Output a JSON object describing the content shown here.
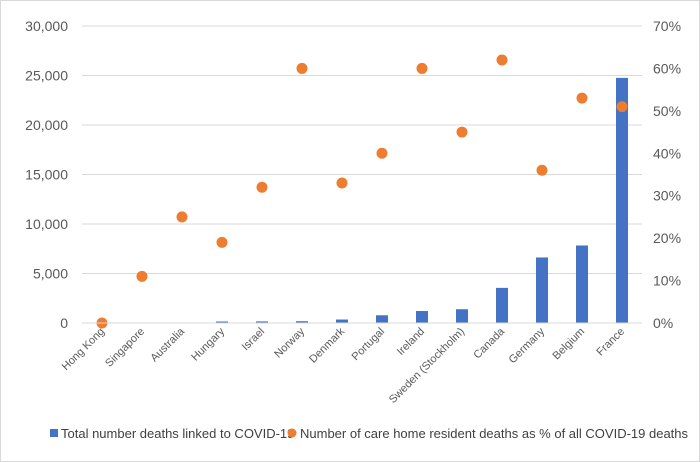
{
  "chart_data": {
    "type": "bar",
    "categories": [
      "Hong Kong",
      "Singapore",
      "Australia",
      "Hungary",
      "Israel",
      "Norway",
      "Denmark",
      "Portugal",
      "Ireland",
      "Sweden (Stockholm)",
      "Canada",
      "Germany",
      "Belgium",
      "France"
    ],
    "series": [
      {
        "name": "Total number deaths linked to COVID-19",
        "type": "bar",
        "axis": "left",
        "color": "#4472C4",
        "values": [
          0,
          0,
          50,
          150,
          160,
          180,
          350,
          780,
          1210,
          1390,
          3550,
          6620,
          7830,
          24760
        ]
      },
      {
        "name": "Number of care home resident deaths as % of all COVID-19 deaths",
        "type": "scatter",
        "axis": "right",
        "color": "#ED7D31",
        "values": [
          0,
          11,
          25,
          19,
          32,
          60,
          33,
          40,
          60,
          45,
          62,
          36,
          53,
          51
        ]
      }
    ],
    "y_left": {
      "ylim": [
        0,
        30000
      ],
      "ticks": [
        "0",
        "5,000",
        "10,000",
        "15,000",
        "20,000",
        "25,000",
        "30,000"
      ]
    },
    "y_right": {
      "ylim": [
        0,
        70
      ],
      "ticks": [
        "0%",
        "10%",
        "20%",
        "30%",
        "40%",
        "50%",
        "60%",
        "70%"
      ]
    },
    "grid": true,
    "legend": "bottom"
  }
}
